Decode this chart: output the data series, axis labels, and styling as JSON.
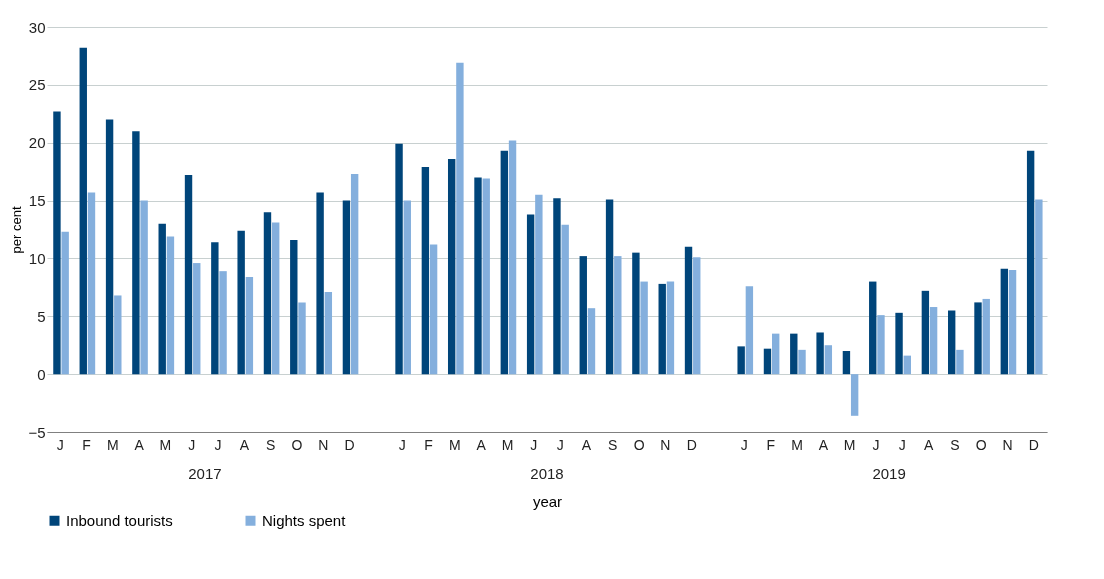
{
  "chart_data": {
    "type": "bar",
    "xlabel": "year",
    "ylabel": "per cent",
    "categories": [
      "J",
      "F",
      "M",
      "A",
      "M",
      "J",
      "J",
      "A",
      "S",
      "O",
      "N",
      "D",
      null,
      "J",
      "F",
      "M",
      "A",
      "M",
      "J",
      "J",
      "A",
      "S",
      "O",
      "N",
      "D",
      null,
      "J",
      "F",
      "M",
      "A",
      "M",
      "J",
      "J",
      "A",
      "S",
      "O",
      "N",
      "D"
    ],
    "annotations": [
      "2017",
      "2018",
      "2019"
    ],
    "series": [
      {
        "name": "Inbound tourists",
        "color": "#00457a",
        "values": [
          22.7,
          28.2,
          22.0,
          21.0,
          13.0,
          17.2,
          11.4,
          12.4,
          14.0,
          11.6,
          15.7,
          15.0,
          null,
          19.9,
          17.9,
          18.6,
          17.0,
          19.3,
          13.8,
          15.2,
          10.2,
          15.1,
          10.5,
          7.8,
          11.0,
          null,
          2.4,
          2.2,
          3.5,
          3.6,
          2.0,
          8.0,
          5.3,
          7.2,
          5.5,
          6.2,
          9.1,
          19.3
        ]
      },
      {
        "name": "Nights spent",
        "color": "#84afdd",
        "values": [
          12.3,
          15.7,
          6.8,
          15.0,
          11.9,
          9.6,
          8.9,
          8.4,
          13.1,
          6.2,
          7.1,
          17.3,
          null,
          15.0,
          11.2,
          26.9,
          16.9,
          20.2,
          15.5,
          12.9,
          5.7,
          10.2,
          8.0,
          8.0,
          10.1,
          null,
          7.6,
          3.5,
          2.1,
          2.5,
          -3.6,
          5.1,
          1.6,
          5.8,
          2.1,
          6.5,
          9.0,
          15.1
        ]
      }
    ],
    "ylim": [
      -5,
      30
    ],
    "yticks": [
      -5,
      0,
      5,
      10,
      15,
      20,
      25,
      30
    ],
    "grid": "y",
    "legend": "bottom"
  }
}
